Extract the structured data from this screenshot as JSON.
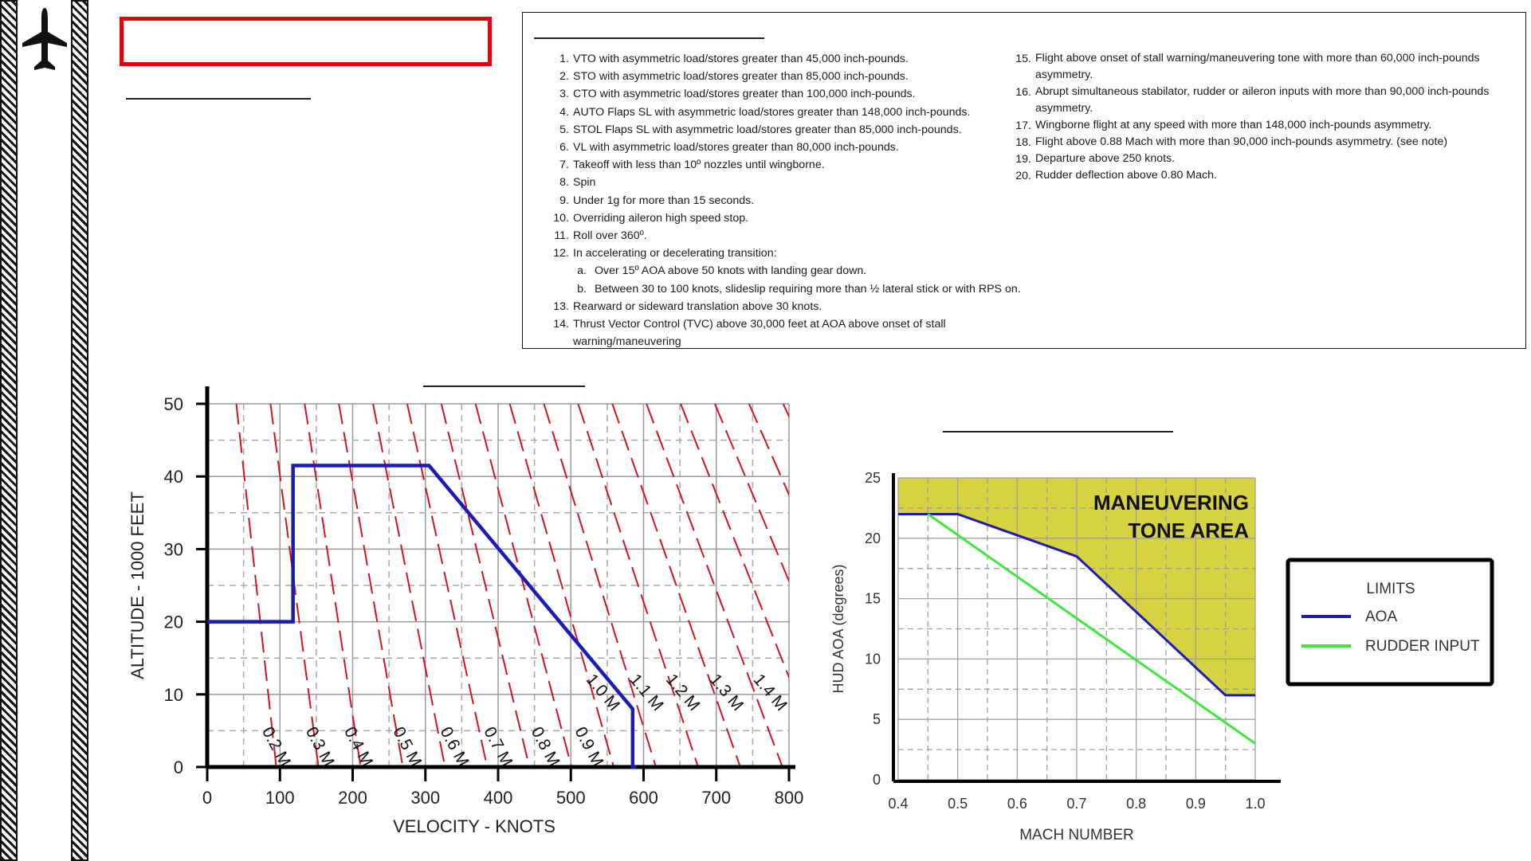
{
  "sidebar": {
    "icons": [
      "aircraft-icon"
    ]
  },
  "title": {
    "text": ""
  },
  "prohibited": {
    "left_items": [
      {
        "num": "1.",
        "text": "VTO with asymmetric load/stores greater than 45,000 inch-pounds."
      },
      {
        "num": "2.",
        "text": "STO with asymmetric load/stores greater than 85,000 inch-pounds."
      },
      {
        "num": "3.",
        "text": "CTO with asymmetric load/stores greater than 100,000 inch-pounds."
      },
      {
        "num": "4.",
        "text": "AUTO Flaps SL with asymmetric load/stores greater than 148,000 inch-pounds."
      },
      {
        "num": "5.",
        "text": "STOL Flaps SL with asymmetric load/stores greater than 85,000 inch-pounds."
      },
      {
        "num": "6.",
        "text": "VL with asymmetric load/stores greater than 80,000 inch-pounds."
      },
      {
        "num": "7.",
        "text": "Takeoff with less than 10º nozzles until wingborne."
      },
      {
        "num": "8.",
        "text": "Spin"
      },
      {
        "num": "9.",
        "text": "Under 1g for more than 15 seconds."
      },
      {
        "num": "10.",
        "text": "Overriding aileron high speed stop."
      },
      {
        "num": "11.",
        "text": "Roll over 360º."
      },
      {
        "num": "12.",
        "text": "In accelerating or decelerating transition:"
      },
      {
        "num": "a.",
        "text": "Over 15º AOA above 50 knots with landing gear down.",
        "sub": true
      },
      {
        "num": "b.",
        "text": "Between 30 to 100 knots, slideslip requiring more than ½ lateral stick or with RPS on.",
        "sub": true
      },
      {
        "num": "13.",
        "text": "Rearward or sideward translation above 30 knots."
      },
      {
        "num": "14.",
        "text": "Thrust Vector Control (TVC) above 30,000 feet at AOA above onset of stall warning/maneuvering"
      }
    ],
    "right_items": [
      {
        "num": "15.",
        "text": "Flight above onset of stall warning/maneuvering tone with more than 60,000 inch-pounds asymmetry."
      },
      {
        "num": "16.",
        "text": "Abrupt simultaneous stabilator, rudder or aileron inputs with more than 90,000 inch-pounds asymmetry."
      },
      {
        "num": "17.",
        "text": "Wingborne flight at any speed with more than 148,000 inch-pounds asymmetry."
      },
      {
        "num": "18.",
        "text": "Flight above 0.88 Mach with more than 90,000 inch-pounds asymmetry. (see note)"
      },
      {
        "num": "19.",
        "text": "Departure above 250 knots."
      },
      {
        "num": "20.",
        "text": "Rudder deflection above 0.80 Mach."
      }
    ]
  },
  "chart_data": [
    {
      "type": "line",
      "title": "",
      "xlabel": "VELOCITY - KNOTS",
      "ylabel": "ALTITUDE - 1000 FEET",
      "xlim": [
        0,
        800
      ],
      "ylim": [
        0,
        50
      ],
      "xticks": [
        "0",
        "100",
        "200",
        "300",
        "400",
        "500",
        "600",
        "700",
        "800"
      ],
      "yticks": [
        "0",
        "10",
        "20",
        "30",
        "40",
        "50"
      ],
      "grid": true,
      "series": [
        {
          "color": "#1c1cb4",
          "x": [
            0,
            118,
            118,
            305,
            585,
            585,
            590
          ],
          "y": [
            20,
            20,
            41.5,
            41.5,
            8,
            0,
            0
          ]
        }
      ],
      "mach_lines": [
        "0.2 M",
        "0.3 M",
        "0.4 M",
        "0.5 M",
        "0.6 M",
        "0.7 M",
        "0.8 M",
        "0.9 M",
        "1.0 M",
        "1.1 M",
        "1.2 M",
        "1.3 M",
        "1.4 M"
      ],
      "mach_line_color": "#d4141c"
    },
    {
      "type": "line",
      "title": "",
      "xlabel": "MACH NUMBER",
      "ylabel": "HUD AOA (degrees)",
      "xlim": [
        0.4,
        1.0
      ],
      "ylim": [
        0,
        25
      ],
      "xticks": [
        "0.4",
        "0.5",
        "0.6",
        "0.7",
        "0.8",
        "0.9",
        "1.0"
      ],
      "yticks": [
        "0",
        "5",
        "10",
        "15",
        "20",
        "25"
      ],
      "grid": true,
      "legend": {
        "title": "LIMITS",
        "placement": "right",
        "entries": [
          "AOA",
          "RUDDER INPUT"
        ]
      },
      "annotation_lines": [
        "MANEUVERING",
        "TONE AREA"
      ],
      "shaded_area_color": "#d6d242",
      "series": [
        {
          "name": "AOA",
          "color": "#1c1cb4",
          "x": [
            0.4,
            0.5,
            0.7,
            0.95,
            1.0
          ],
          "y": [
            22,
            22,
            18.5,
            7,
            7
          ]
        },
        {
          "name": "RUDDER INPUT",
          "color": "#3ee83e",
          "x": [
            0.45,
            1.0
          ],
          "y": [
            22,
            3
          ]
        }
      ]
    }
  ]
}
